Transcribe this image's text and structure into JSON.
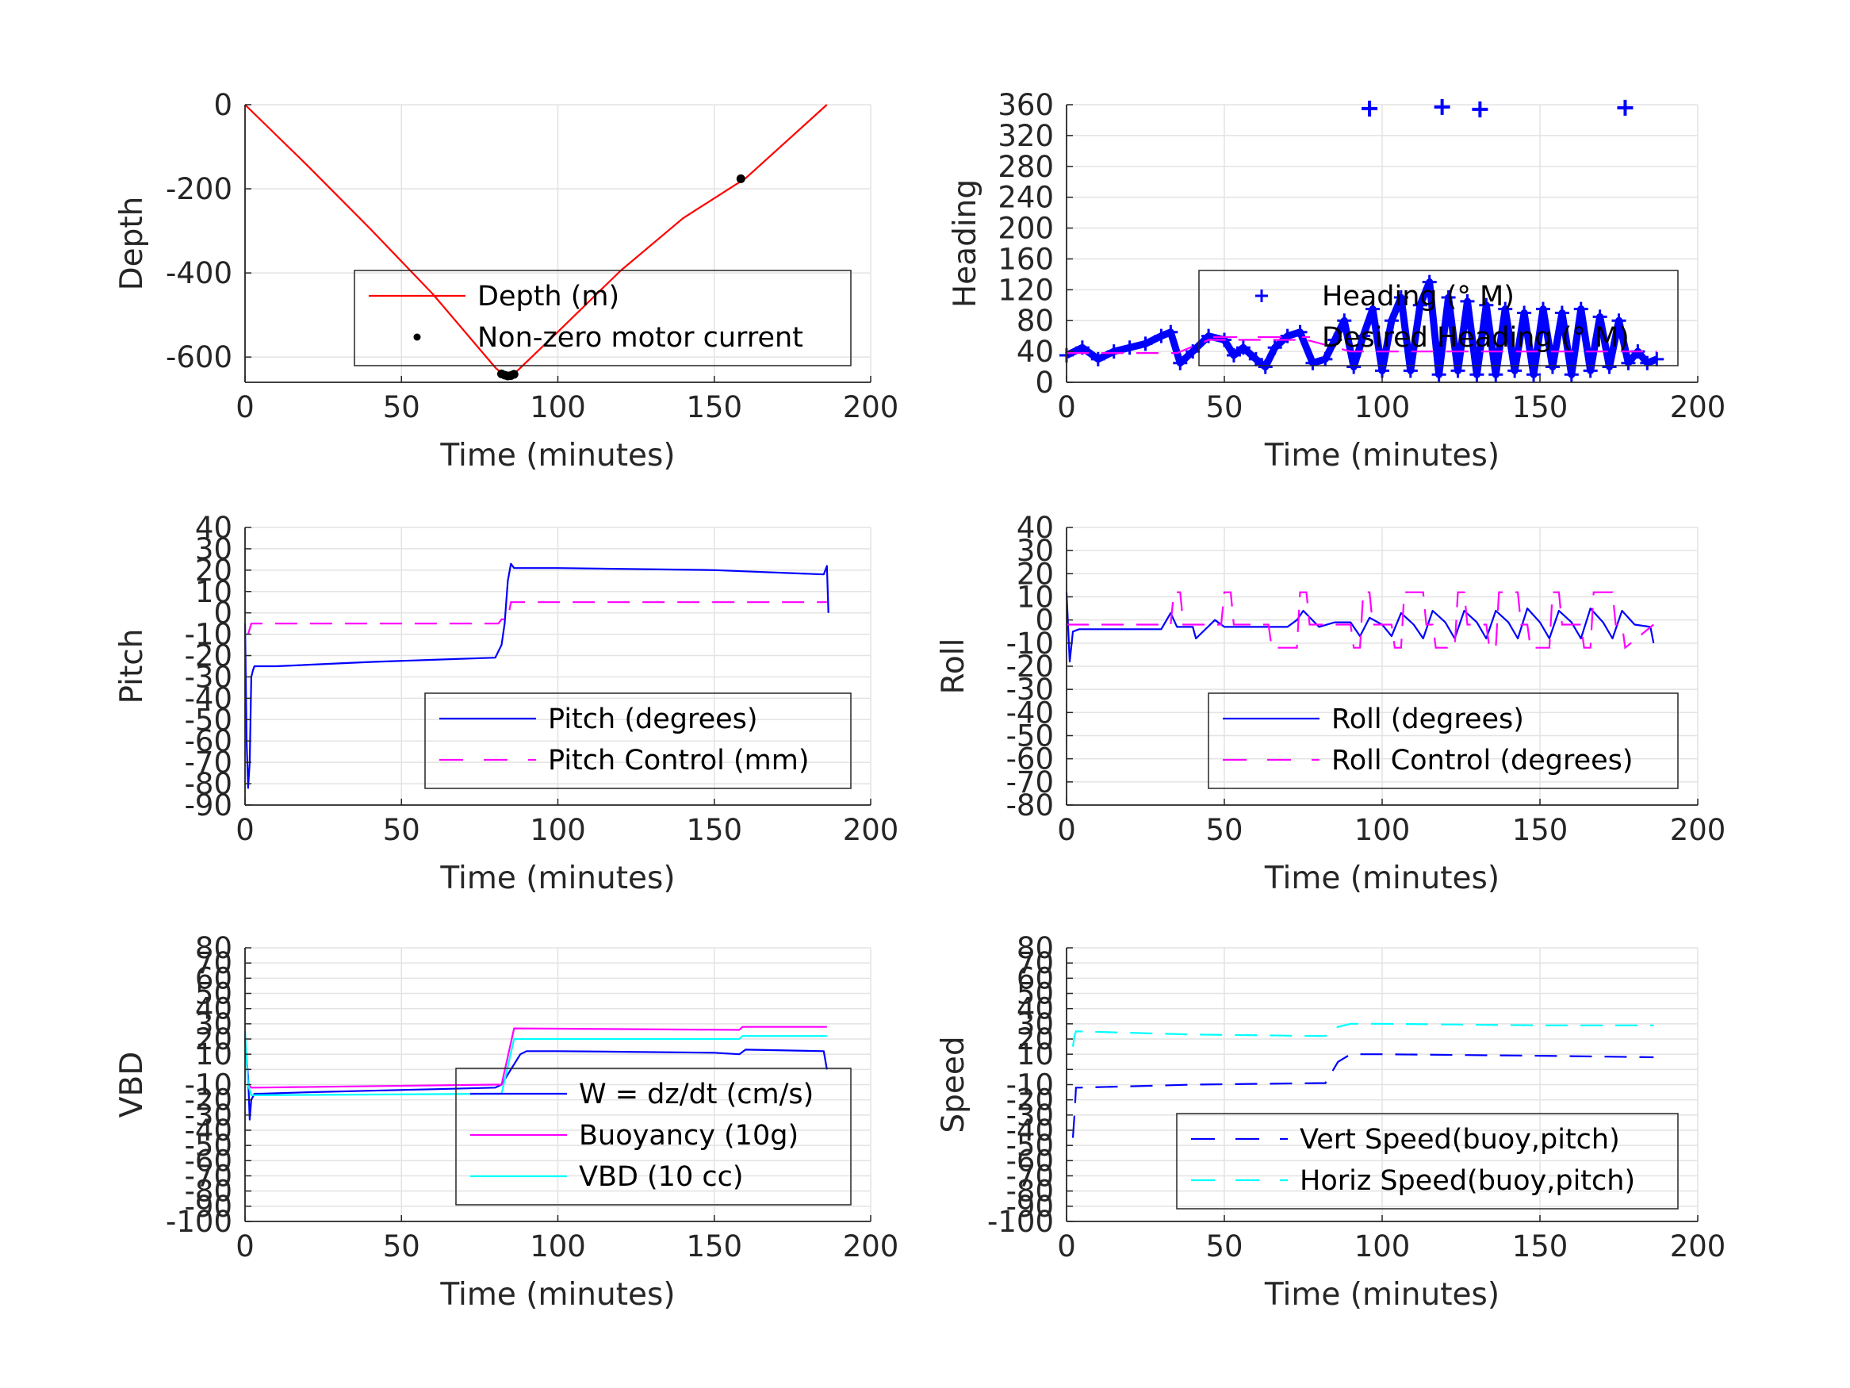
{
  "chart_data": [
    {
      "type": "line",
      "xlabel": "Time (minutes)",
      "ylabel": "Depth",
      "xlim": [
        0,
        200
      ],
      "ylim": [
        -660,
        0
      ],
      "x_ticks": [
        0,
        50,
        100,
        150,
        200
      ],
      "y_ticks": [
        0,
        -200,
        -400,
        -600
      ],
      "grid": true,
      "legend_position": "bottom-right",
      "series": [
        {
          "name": "Depth (m)",
          "style": "line",
          "color": "#ff0000",
          "x": [
            0,
            20,
            40,
            60,
            80,
            83,
            86,
            100,
            120,
            140,
            160,
            186
          ],
          "y": [
            0,
            -145,
            -295,
            -450,
            -625,
            -645,
            -640,
            -540,
            -395,
            -270,
            -175,
            0
          ]
        },
        {
          "name": "Non-zero motor current",
          "style": "dots",
          "color": "#000000",
          "x": [
            82,
            83,
            84,
            85,
            86,
            158.5
          ],
          "y": [
            -640,
            -643,
            -645,
            -644,
            -641,
            -176
          ]
        }
      ]
    },
    {
      "type": "scatter",
      "xlabel": "Time (minutes)",
      "ylabel": "Heading",
      "xlim": [
        0,
        200
      ],
      "ylim": [
        0,
        360
      ],
      "x_ticks": [
        0,
        50,
        100,
        150,
        200
      ],
      "y_ticks": [
        0,
        40,
        80,
        120,
        160,
        200,
        240,
        280,
        320,
        360
      ],
      "grid": true,
      "legend_position": "center-right",
      "series": [
        {
          "name": "Heading (° M)",
          "style": "plus-line",
          "color": "#0000ff",
          "x": [
            0,
            5,
            10,
            15,
            20,
            25,
            30,
            33,
            36,
            40,
            45,
            50,
            53,
            56,
            60,
            63,
            66,
            70,
            74,
            78,
            82,
            85,
            88,
            91,
            94,
            97,
            100,
            103,
            106,
            109,
            112,
            115,
            118,
            121,
            124,
            127,
            130,
            133,
            136,
            139,
            142,
            145,
            148,
            151,
            154,
            157,
            160,
            163,
            166,
            169,
            172,
            175,
            178,
            181,
            184,
            187
          ],
          "y": [
            35,
            45,
            30,
            40,
            45,
            50,
            60,
            65,
            25,
            40,
            60,
            55,
            35,
            45,
            30,
            20,
            45,
            60,
            65,
            25,
            30,
            55,
            80,
            20,
            60,
            95,
            15,
            80,
            110,
            15,
            100,
            130,
            10,
            110,
            15,
            105,
            10,
            100,
            10,
            95,
            15,
            90,
            10,
            95,
            20,
            90,
            10,
            95,
            15,
            85,
            20,
            80,
            25,
            40,
            25,
            30
          ],
          "outliers_x": [
            96,
            119,
            131,
            177
          ],
          "outliers_y": [
            355,
            357,
            354,
            356
          ]
        },
        {
          "name": "Desired Heading (° M)",
          "style": "dashed",
          "color": "#ff00ff",
          "x": [
            0,
            35,
            45,
            76,
            90,
            187
          ],
          "y": [
            38,
            38,
            55,
            55,
            40,
            40
          ]
        }
      ]
    },
    {
      "type": "line",
      "xlabel": "Time (minutes)",
      "ylabel": "Pitch",
      "xlim": [
        0,
        200
      ],
      "ylim": [
        -90,
        40
      ],
      "x_ticks": [
        0,
        50,
        100,
        150,
        200
      ],
      "y_ticks": [
        40,
        30,
        20,
        10,
        0,
        -10,
        -20,
        -30,
        -40,
        -50,
        -60,
        -70,
        -80,
        -90
      ],
      "grid": true,
      "legend_position": "bottom-right",
      "series": [
        {
          "name": "Pitch (degrees)",
          "style": "line",
          "color": "#0000ff",
          "x": [
            0,
            0.5,
            1,
            1.5,
            2,
            2.5,
            3,
            10,
            40,
            60,
            80,
            82,
            83,
            84,
            85,
            86,
            90,
            100,
            150,
            185,
            186,
            186.5
          ],
          "y": [
            -5,
            -60,
            -82,
            -70,
            -30,
            -27,
            -25,
            -25,
            -23,
            -22,
            -21,
            -15,
            -5,
            15,
            23,
            21,
            21,
            21,
            20,
            18,
            22,
            0
          ]
        },
        {
          "name": "Pitch Control (mm)",
          "style": "dashed",
          "color": "#ff00ff",
          "x": [
            1,
            2,
            81,
            82,
            84,
            85,
            186
          ],
          "y": [
            -10,
            -5,
            -5,
            -3,
            -3,
            5,
            5
          ]
        }
      ]
    },
    {
      "type": "line",
      "xlabel": "Time (minutes)",
      "ylabel": "Roll",
      "xlim": [
        0,
        200
      ],
      "ylim": [
        -80,
        40
      ],
      "x_ticks": [
        0,
        50,
        100,
        150,
        200
      ],
      "y_ticks": [
        40,
        30,
        20,
        10,
        0,
        -10,
        -20,
        -30,
        -40,
        -50,
        -60,
        -70,
        -80
      ],
      "grid": true,
      "legend_position": "bottom-right",
      "series": [
        {
          "name": "Roll (degrees)",
          "style": "line",
          "color": "#0000ff",
          "x": [
            0,
            1,
            2,
            4,
            10,
            30,
            33,
            35,
            40,
            41,
            47,
            50,
            55,
            60,
            65,
            70,
            73,
            75,
            80,
            85,
            90,
            93,
            96,
            100,
            103,
            106,
            110,
            113,
            116,
            120,
            123,
            126,
            130,
            133,
            136,
            140,
            143,
            146,
            150,
            153,
            156,
            160,
            163,
            166,
            170,
            173,
            176,
            180,
            185,
            186
          ],
          "y": [
            12,
            -18,
            -5,
            -4,
            -4,
            -4,
            3,
            -3,
            -3,
            -8,
            0,
            -3,
            -3,
            -3,
            -3,
            -3,
            0,
            4,
            -3,
            -1,
            -1,
            -7,
            1,
            -2,
            -7,
            3,
            -2,
            -8,
            4,
            -1,
            -8,
            4,
            -1,
            -8,
            4,
            -1,
            -8,
            5,
            -1,
            -8,
            4,
            -1,
            -8,
            5,
            -1,
            -8,
            4,
            -2,
            -3,
            -10
          ]
        },
        {
          "name": "Roll Control (degrees)",
          "style": "dashed",
          "color": "#ff00ff",
          "x": [
            0,
            33,
            34,
            36,
            37,
            49,
            50,
            52,
            53,
            64,
            65,
            73,
            74,
            76,
            77,
            90,
            91,
            93,
            94,
            96,
            97,
            103,
            104,
            106,
            107,
            113,
            114,
            116,
            117,
            123,
            124,
            126,
            127,
            133,
            134,
            136,
            137,
            143,
            144,
            146,
            147,
            153,
            154,
            156,
            157,
            163,
            164,
            166,
            167,
            173,
            174,
            176,
            177,
            186
          ],
          "y": [
            -2,
            -2,
            12,
            12,
            -2,
            -2,
            12,
            12,
            -2,
            -2,
            -12,
            -12,
            12,
            12,
            -2,
            -2,
            -12,
            -12,
            12,
            12,
            -2,
            -2,
            -12,
            -12,
            12,
            12,
            -2,
            -2,
            -12,
            -12,
            12,
            12,
            -2,
            -2,
            -12,
            -12,
            12,
            12,
            -2,
            -2,
            -12,
            -12,
            12,
            12,
            -2,
            -2,
            -12,
            -12,
            12,
            12,
            -2,
            -2,
            -12,
            -2
          ]
        }
      ]
    },
    {
      "type": "line",
      "xlabel": "Time (minutes)",
      "ylabel": "VBD",
      "xlim": [
        0,
        200
      ],
      "ylim": [
        -100,
        80
      ],
      "x_ticks": [
        0,
        50,
        100,
        150,
        200
      ],
      "y_ticks": [
        80,
        70,
        60,
        50,
        40,
        30,
        20,
        10,
        0,
        -10,
        -20,
        -30,
        -40,
        -50,
        -60,
        -70,
        -80,
        -90,
        -100
      ],
      "y_tick_labels_shown": [
        "80",
        "70",
        "60",
        "50",
        "40",
        "30",
        "20",
        "10",
        "-10",
        "-20",
        "-30",
        "-40",
        "-50",
        "-60",
        "-70",
        "-80",
        "-90",
        "-100"
      ],
      "grid": true,
      "legend_position": "bottom-right",
      "series": [
        {
          "name": "W = dz/dt (cm/s)",
          "style": "line",
          "color": "#0000ff",
          "x": [
            0,
            1,
            1.5,
            2,
            3,
            5,
            20,
            40,
            60,
            80,
            82,
            85,
            88,
            90,
            100,
            150,
            158,
            160,
            185,
            186
          ],
          "y": [
            20,
            -5,
            -33,
            -20,
            -16,
            -16,
            -15,
            -14,
            -13,
            -12,
            -10,
            0,
            10,
            12,
            12,
            11,
            10,
            13,
            12,
            0
          ]
        },
        {
          "name": "Buoyancy (10g)",
          "style": "line",
          "color": "#ff00ff",
          "x": [
            0,
            1,
            2,
            3,
            80,
            82,
            86,
            158,
            159,
            186
          ],
          "y": [
            22,
            -10,
            -12,
            -12,
            -10,
            -10,
            27,
            26,
            28,
            28
          ]
        },
        {
          "name": "VBD (10 cc)",
          "style": "line",
          "color": "#00ffff",
          "x": [
            0,
            1,
            2,
            3,
            80,
            82,
            86,
            158,
            159,
            186
          ],
          "y": [
            25,
            -10,
            -17,
            -17,
            -16,
            -16,
            20,
            20,
            22,
            22
          ]
        }
      ]
    },
    {
      "type": "line",
      "xlabel": "Time (minutes)",
      "ylabel": "Speed",
      "xlim": [
        0,
        200
      ],
      "ylim": [
        -100,
        80
      ],
      "x_ticks": [
        0,
        50,
        100,
        150,
        200
      ],
      "y_ticks": [
        80,
        70,
        60,
        50,
        40,
        30,
        20,
        10,
        0,
        -10,
        -20,
        -30,
        -40,
        -50,
        -60,
        -70,
        -80,
        -90,
        -100
      ],
      "y_tick_labels_shown": [
        "80",
        "70",
        "60",
        "50",
        "40",
        "30",
        "20",
        "10",
        "-10",
        "-20",
        "-30",
        "-40",
        "-50",
        "-60",
        "-70",
        "-80",
        "-90",
        "-100"
      ],
      "grid": true,
      "legend_position": "bottom-right",
      "series": [
        {
          "name": "Vert Speed(buoy,pitch)",
          "style": "dashed",
          "color": "#0000ff",
          "x": [
            2,
            2.5,
            3,
            4,
            40,
            80,
            82,
            86,
            90,
            100,
            150,
            186
          ],
          "y": [
            -45,
            -30,
            -12,
            -12,
            -10,
            -9,
            -9,
            5,
            10,
            10,
            9,
            8
          ]
        },
        {
          "name": "Horiz Speed(buoy,pitch)",
          "style": "dashed",
          "color": "#00ffff",
          "x": [
            2,
            2.5,
            3,
            4,
            40,
            80,
            82,
            86,
            90,
            100,
            150,
            186
          ],
          "y": [
            15,
            22,
            25,
            25,
            23,
            22,
            22,
            28,
            30,
            30,
            29,
            29
          ]
        }
      ]
    }
  ]
}
